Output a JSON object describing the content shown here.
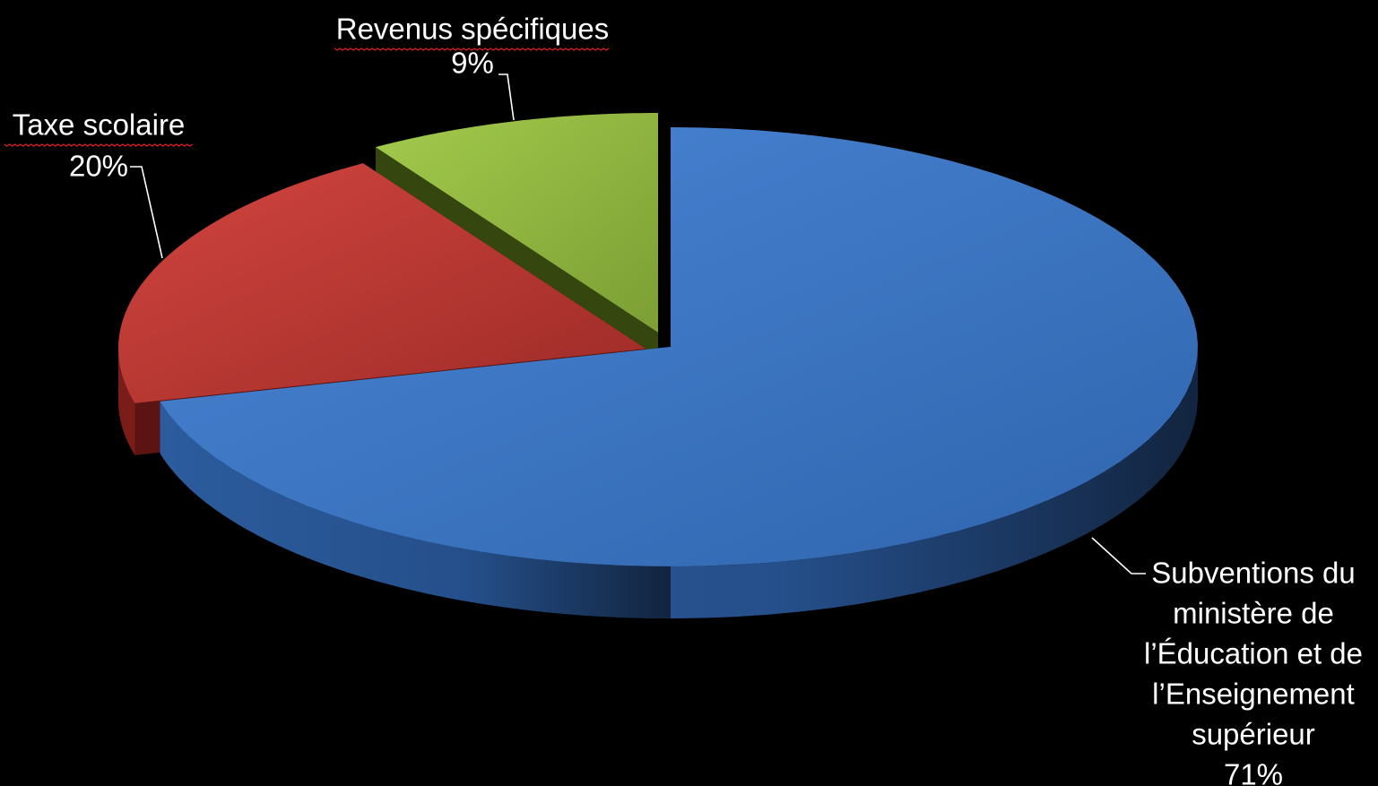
{
  "chart_data": {
    "type": "pie",
    "style": "3d-exploded",
    "slices": [
      {
        "label_lines": [
          "Subventions du",
          "ministère de",
          "l’Éducation et de",
          "l’Enseignement",
          "supérieur"
        ],
        "value": 71,
        "value_label": "71%",
        "color": "#3b78c8"
      },
      {
        "label_lines": [
          "Taxe scolaire"
        ],
        "value": 20,
        "value_label": "20%",
        "color": "#c23a36"
      },
      {
        "label_lines": [
          "Revenus spécifiques"
        ],
        "value": 9,
        "value_label": "9%",
        "color": "#9ac044"
      }
    ],
    "background": "#000000",
    "label_color": "#ffffff",
    "spellcheck_underline_color": "#e02020"
  }
}
